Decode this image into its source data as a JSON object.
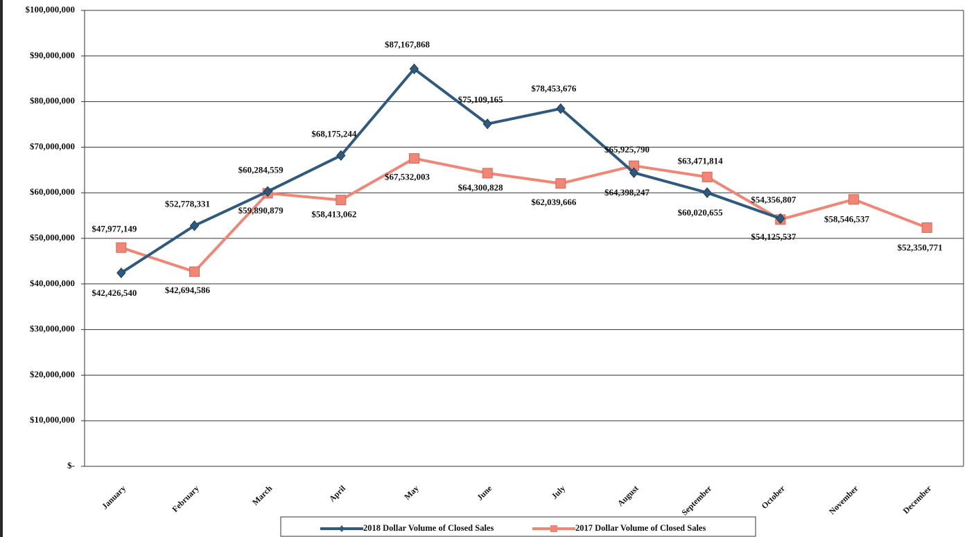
{
  "chart_data": {
    "type": "line",
    "categories": [
      "January",
      "February",
      "March",
      "April",
      "May",
      "June",
      "July",
      "August",
      "September",
      "October",
      "November",
      "December"
    ],
    "series": [
      {
        "name": "2018 Dollar Volume of Closed Sales",
        "color": "#2f5a7e",
        "marker": "diamond",
        "values": [
          42426540,
          52778331,
          60284559,
          68175244,
          87167868,
          75109165,
          78453676,
          64398247,
          60020655,
          54356807,
          null,
          null
        ],
        "value_labels": [
          "$42,426,540",
          "$52,778,331",
          "$60,284,559",
          "$68,175,244",
          "$87,167,868",
          "$75,109,165",
          "$78,453,676",
          "$64,398,247",
          "$60,020,655",
          "$54,356,807",
          null,
          null
        ]
      },
      {
        "name": "2017 Dollar Volume of Closed Sales",
        "color": "#f08676",
        "marker": "square",
        "values": [
          47977149,
          42694586,
          59890879,
          58413062,
          67532003,
          64300828,
          62039666,
          65925790,
          63471814,
          54125537,
          58546537,
          52350771
        ],
        "value_labels": [
          "$47,977,149",
          "$42,694,586",
          "$59,890,879",
          "$58,413,062",
          "$67,532,003",
          "$64,300,828",
          "$62,039,666",
          "$65,925,790",
          "$63,471,814",
          "$54,125,537",
          "$58,546,537",
          "$52,350,771"
        ]
      }
    ],
    "ylim": [
      0,
      100000000
    ],
    "yticks": [
      {
        "value": 0,
        "label": "$-"
      },
      {
        "value": 10000000,
        "label": "$10,000,000"
      },
      {
        "value": 20000000,
        "label": "$20,000,000"
      },
      {
        "value": 30000000,
        "label": "$30,000,000"
      },
      {
        "value": 40000000,
        "label": "$40,000,000"
      },
      {
        "value": 50000000,
        "label": "$50,000,000"
      },
      {
        "value": 60000000,
        "label": "$60,000,000"
      },
      {
        "value": 70000000,
        "label": "$70,000,000"
      },
      {
        "value": 80000000,
        "label": "$80,000,000"
      },
      {
        "value": 90000000,
        "label": "$90,000,000"
      },
      {
        "value": 100000000,
        "label": "$100,000,000"
      }
    ],
    "grid": true,
    "legend": "bottom"
  }
}
